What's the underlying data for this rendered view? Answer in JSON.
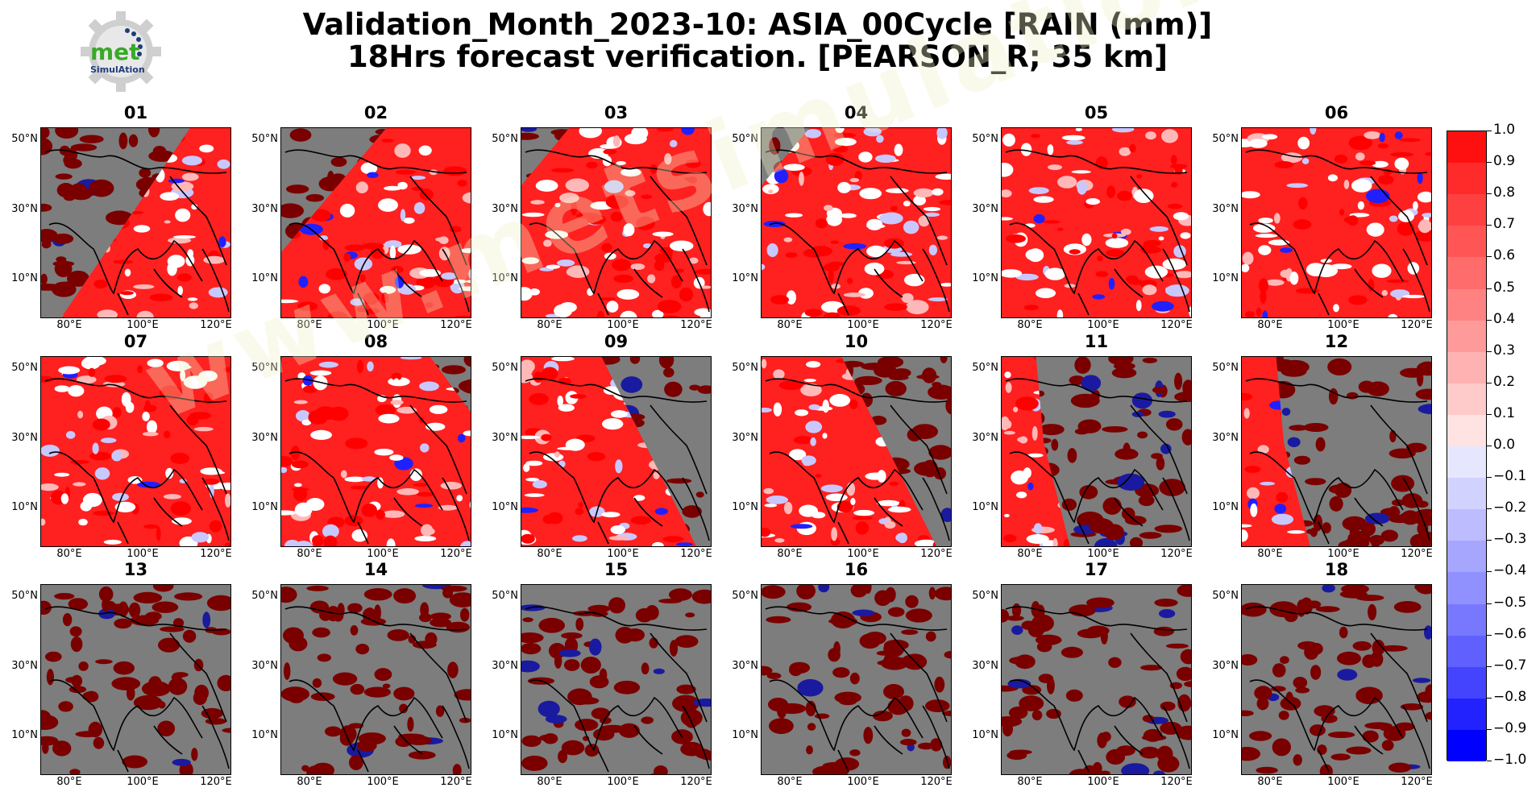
{
  "title": {
    "line1": "Validation_Month_2023-10: ASIA_00Cycle [RAIN (mm)]",
    "line2": "18Hrs forecast verification.  [PEARSON_R; 35 km]"
  },
  "logo": {
    "text_main": "met",
    "text_sub": "SimulAtion",
    "icon": "gear-logo-icon"
  },
  "watermark": "www.metsimulation.com",
  "panels": [
    {
      "label": "01",
      "mask": "west"
    },
    {
      "label": "02",
      "mask": "northwest"
    },
    {
      "label": "03",
      "mask": "corner"
    },
    {
      "label": "04",
      "mask": "corner"
    },
    {
      "label": "05",
      "mask": "none"
    },
    {
      "label": "06",
      "mask": "none"
    },
    {
      "label": "07",
      "mask": "none"
    },
    {
      "label": "08",
      "mask": "northeast"
    },
    {
      "label": "09",
      "mask": "east"
    },
    {
      "label": "10",
      "mask": "east"
    },
    {
      "label": "11",
      "mask": "mostly"
    },
    {
      "label": "12",
      "mask": "mostly"
    },
    {
      "label": "13",
      "mask": "full"
    },
    {
      "label": "14",
      "mask": "full"
    },
    {
      "label": "15",
      "mask": "full"
    },
    {
      "label": "16",
      "mask": "full"
    },
    {
      "label": "17",
      "mask": "full"
    },
    {
      "label": "18",
      "mask": "full"
    }
  ],
  "axes": {
    "lat_ticks": [
      "50°N",
      "30°N",
      "10°N"
    ],
    "lon_ticks": [
      "80°E",
      "100°E",
      "120°E"
    ]
  },
  "colorbar": {
    "labels": [
      "1.0",
      "0.9",
      "0.8",
      "0.7",
      "0.6",
      "0.5",
      "0.4",
      "0.3",
      "0.2",
      "0.1",
      "0.0",
      "−0.1",
      "−0.2",
      "−0.3",
      "−0.4",
      "−0.5",
      "−0.6",
      "−0.7",
      "−0.8",
      "−0.9",
      "−1.0"
    ],
    "colors": [
      "#ff1010",
      "#ff2a2a",
      "#ff4040",
      "#ff5555",
      "#ff6c6c",
      "#ff8282",
      "#ff9a9a",
      "#ffb2b2",
      "#ffcaca",
      "#ffe2e2",
      "#f8f8ff",
      "#e6e6ff",
      "#d2d2ff",
      "#bcbcff",
      "#a6a6ff",
      "#9090ff",
      "#7878ff",
      "#6060ff",
      "#4444ff",
      "#2222ff",
      "#0000ff"
    ]
  }
}
